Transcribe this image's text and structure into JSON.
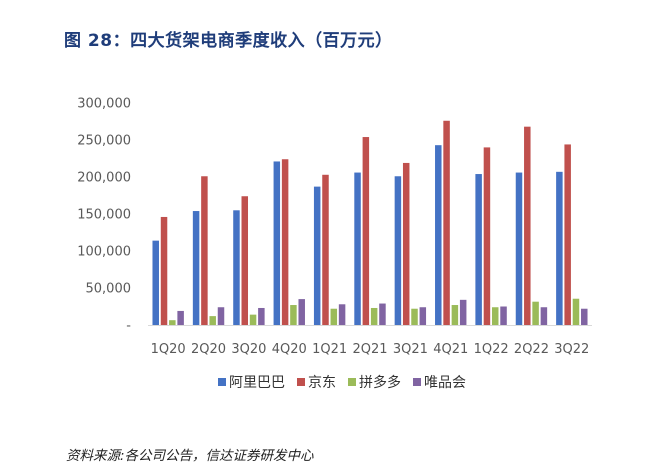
{
  "title": "图 28：四大货架电商季度收入（百万元）",
  "source": "资料来源:各公司公告，信达证券研发中心",
  "chart_data": {
    "type": "bar",
    "title": "图 28：四大货架电商季度收入（百万元）",
    "categories": [
      "1Q20",
      "2Q20",
      "3Q20",
      "4Q20",
      "1Q21",
      "2Q21",
      "3Q21",
      "4Q21",
      "1Q22",
      "2Q22",
      "3Q22"
    ],
    "series": [
      {
        "name": "阿里巴巴",
        "color": "#4472C4",
        "values": [
          114000,
          154000,
          155000,
          221000,
          187000,
          206000,
          201000,
          243000,
          204000,
          206000,
          207000
        ]
      },
      {
        "name": "京东",
        "color": "#C0504D",
        "values": [
          146000,
          201000,
          174000,
          224000,
          203000,
          254000,
          219000,
          276000,
          240000,
          268000,
          244000
        ]
      },
      {
        "name": "拼多多",
        "color": "#9BBB59",
        "values": [
          6500,
          12000,
          14000,
          27000,
          22000,
          23000,
          22000,
          27000,
          24000,
          31500,
          35500
        ]
      },
      {
        "name": "唯品会",
        "color": "#8064A2",
        "values": [
          19000,
          24000,
          23000,
          35000,
          28000,
          29000,
          24000,
          34000,
          25000,
          24000,
          22000
        ]
      }
    ],
    "ylim": [
      0,
      300000
    ],
    "yticks": [
      "-",
      "50,000",
      "100,000",
      "150,000",
      "200,000",
      "250,000",
      "300,000"
    ],
    "grid": false,
    "legend": "bottom"
  }
}
